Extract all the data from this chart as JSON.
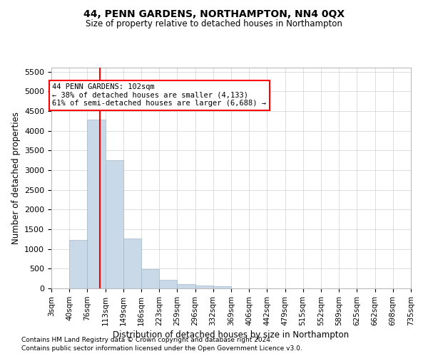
{
  "title": "44, PENN GARDENS, NORTHAMPTON, NN4 0QX",
  "subtitle": "Size of property relative to detached houses in Northampton",
  "xlabel": "Distribution of detached houses by size in Northampton",
  "ylabel": "Number of detached properties",
  "footnote1": "Contains HM Land Registry data © Crown copyright and database right 2024.",
  "footnote2": "Contains public sector information licensed under the Open Government Licence v3.0.",
  "property_label": "44 PENN GARDENS: 102sqm",
  "annotation_line1": "← 38% of detached houses are smaller (4,133)",
  "annotation_line2": "61% of semi-detached houses are larger (6,688) →",
  "bar_color": "#c9d9e8",
  "bar_edge_color": "#a0b8cc",
  "vline_color": "red",
  "background_color": "#ffffff",
  "grid_color": "#d0d0d0",
  "categories": [
    "3sqm",
    "40sqm",
    "76sqm",
    "113sqm",
    "149sqm",
    "186sqm",
    "223sqm",
    "259sqm",
    "296sqm",
    "332sqm",
    "369sqm",
    "406sqm",
    "442sqm",
    "479sqm",
    "515sqm",
    "552sqm",
    "589sqm",
    "625sqm",
    "662sqm",
    "698sqm",
    "735sqm"
  ],
  "bin_edges": [
    3,
    40,
    76,
    113,
    149,
    186,
    223,
    259,
    296,
    332,
    369,
    406,
    442,
    479,
    515,
    552,
    589,
    625,
    662,
    698,
    735
  ],
  "bar_heights": [
    0,
    1230,
    4290,
    3250,
    1270,
    480,
    210,
    100,
    70,
    50,
    0,
    0,
    0,
    0,
    0,
    0,
    0,
    0,
    0,
    0
  ],
  "ylim": [
    0,
    5600
  ],
  "yticks": [
    0,
    500,
    1000,
    1500,
    2000,
    2500,
    3000,
    3500,
    4000,
    4500,
    5000,
    5500
  ],
  "vline_x": 102
}
